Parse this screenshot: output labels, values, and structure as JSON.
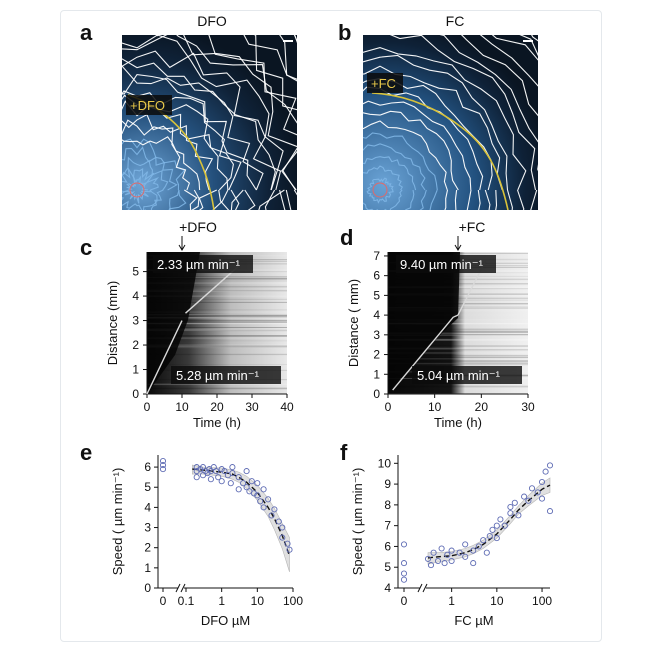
{
  "panels": {
    "a": {
      "label": "a",
      "title": "DFO",
      "inset_label": "+DFO"
    },
    "b": {
      "label": "b",
      "title": "FC",
      "inset_label": "+FC"
    },
    "c": {
      "label": "c"
    },
    "d": {
      "label": "d"
    },
    "e": {
      "label": "e"
    },
    "f": {
      "label": "f"
    }
  },
  "colors": {
    "ink": "#111111",
    "scatter": "#5f6cb4",
    "band": "#c8c8c8",
    "image_bg": "#0d1a2a",
    "contour": "#ffffff",
    "inner_contour": "#7fb6e6",
    "boundary": "#d8c23a"
  },
  "chart_data": [
    {
      "id": "c",
      "type": "heatmap",
      "title": "",
      "xlabel": "Time (h)",
      "ylabel": "Distance (mm)",
      "xlim": [
        0,
        40
      ],
      "ylim": [
        0,
        5.8
      ],
      "xticks": [
        "0",
        "10",
        "20",
        "30",
        "40"
      ],
      "yticks": [
        "0",
        "1",
        "2",
        "3",
        "4",
        "5"
      ],
      "event_label": "+DFO",
      "event_x": 10,
      "annotations": [
        "2.33 µm min⁻¹",
        "5.28 µm min⁻¹"
      ],
      "front_segments": [
        {
          "x": [
            0,
            10
          ],
          "y": [
            0,
            3.0
          ]
        },
        {
          "x": [
            11,
            26
          ],
          "y": [
            3.3,
            5.2
          ]
        }
      ]
    },
    {
      "id": "d",
      "type": "heatmap",
      "title": "",
      "xlabel": "Time (h)",
      "ylabel": "Distance ( mm)",
      "xlim": [
        0,
        30
      ],
      "ylim": [
        0,
        7.2
      ],
      "xticks": [
        "0",
        "10",
        "20",
        "30"
      ],
      "yticks": [
        "0",
        "1",
        "2",
        "3",
        "4",
        "5",
        "6",
        "7"
      ],
      "event_label": "+FC",
      "event_x": 15,
      "annotations": [
        "9.40 µm min⁻¹",
        "5.04 µm min⁻¹"
      ],
      "front_segments": [
        {
          "x": [
            1,
            14
          ],
          "y": [
            0.2,
            3.9
          ]
        },
        {
          "x": [
            14,
            15
          ],
          "y": [
            3.9,
            4.0
          ]
        },
        {
          "x": [
            15,
            21
          ],
          "y": [
            4.0,
            6.8
          ]
        }
      ]
    },
    {
      "id": "e",
      "type": "scatter",
      "title": "",
      "xlabel": "DFO µM",
      "ylabel": "Speed ( µm min⁻¹)",
      "x_scale": "log",
      "ylim": [
        0,
        6.6
      ],
      "xticks": [
        "0",
        "0.1",
        "1",
        "10",
        "100"
      ],
      "yticks": [
        "0",
        "1",
        "2",
        "3",
        "4",
        "5",
        "6"
      ],
      "points": [
        {
          "x": 0,
          "y": 6.1
        },
        {
          "x": 0,
          "y": 5.9
        },
        {
          "x": 0,
          "y": 6.3
        },
        {
          "x": 0.2,
          "y": 5.8
        },
        {
          "x": 0.2,
          "y": 6.0
        },
        {
          "x": 0.2,
          "y": 5.5
        },
        {
          "x": 0.25,
          "y": 5.9
        },
        {
          "x": 0.3,
          "y": 6.0
        },
        {
          "x": 0.3,
          "y": 5.6
        },
        {
          "x": 0.35,
          "y": 5.8
        },
        {
          "x": 0.4,
          "y": 5.7
        },
        {
          "x": 0.45,
          "y": 5.9
        },
        {
          "x": 0.5,
          "y": 5.4
        },
        {
          "x": 0.5,
          "y": 5.8
        },
        {
          "x": 0.6,
          "y": 6.0
        },
        {
          "x": 0.7,
          "y": 5.8
        },
        {
          "x": 0.8,
          "y": 5.5
        },
        {
          "x": 1,
          "y": 5.9
        },
        {
          "x": 1,
          "y": 5.3
        },
        {
          "x": 1.2,
          "y": 5.8
        },
        {
          "x": 1.5,
          "y": 5.6
        },
        {
          "x": 1.8,
          "y": 5.2
        },
        {
          "x": 2,
          "y": 5.7
        },
        {
          "x": 2,
          "y": 6.0
        },
        {
          "x": 3,
          "y": 5.5
        },
        {
          "x": 3,
          "y": 4.9
        },
        {
          "x": 4,
          "y": 5.2
        },
        {
          "x": 5,
          "y": 5.8
        },
        {
          "x": 5,
          "y": 5.0
        },
        {
          "x": 6,
          "y": 4.8
        },
        {
          "x": 7,
          "y": 5.3
        },
        {
          "x": 8,
          "y": 4.7
        },
        {
          "x": 10,
          "y": 4.6
        },
        {
          "x": 10,
          "y": 5.2
        },
        {
          "x": 12,
          "y": 4.3
        },
        {
          "x": 15,
          "y": 4.9
        },
        {
          "x": 15,
          "y": 4.0
        },
        {
          "x": 20,
          "y": 4.4
        },
        {
          "x": 25,
          "y": 3.6
        },
        {
          "x": 30,
          "y": 3.9
        },
        {
          "x": 40,
          "y": 3.3
        },
        {
          "x": 50,
          "y": 3.0
        },
        {
          "x": 50,
          "y": 2.5
        },
        {
          "x": 70,
          "y": 2.2
        },
        {
          "x": 80,
          "y": 1.9
        }
      ],
      "fit": {
        "x": [
          0.15,
          0.3,
          1,
          2,
          3,
          5,
          10,
          20,
          30,
          50,
          80
        ],
        "y": [
          5.9,
          5.85,
          5.75,
          5.65,
          5.5,
          5.25,
          4.75,
          4.0,
          3.45,
          2.6,
          1.6
        ]
      },
      "band": {
        "upper": [
          6.1,
          6.0,
          5.95,
          5.85,
          5.75,
          5.55,
          5.1,
          4.45,
          3.95,
          3.2,
          2.5
        ],
        "lower": [
          5.65,
          5.65,
          5.55,
          5.4,
          5.25,
          4.95,
          4.35,
          3.55,
          2.9,
          1.95,
          0.8
        ]
      }
    },
    {
      "id": "f",
      "type": "scatter",
      "title": "",
      "xlabel": "FC µM",
      "ylabel": "Speed ( µm min⁻¹)",
      "x_scale": "log",
      "ylim": [
        4,
        10.4
      ],
      "xticks": [
        "0",
        "1",
        "10",
        "100"
      ],
      "yticks": [
        "4",
        "5",
        "6",
        "7",
        "8",
        "9",
        "10"
      ],
      "points": [
        {
          "x": 0,
          "y": 4.7
        },
        {
          "x": 0,
          "y": 5.2
        },
        {
          "x": 0,
          "y": 6.1
        },
        {
          "x": 0,
          "y": 4.4
        },
        {
          "x": 0.3,
          "y": 5.4
        },
        {
          "x": 0.35,
          "y": 5.1
        },
        {
          "x": 0.4,
          "y": 5.7
        },
        {
          "x": 0.5,
          "y": 5.3
        },
        {
          "x": 0.6,
          "y": 5.9
        },
        {
          "x": 0.7,
          "y": 5.2
        },
        {
          "x": 0.8,
          "y": 5.6
        },
        {
          "x": 1,
          "y": 5.8
        },
        {
          "x": 1,
          "y": 5.3
        },
        {
          "x": 1.5,
          "y": 5.7
        },
        {
          "x": 2,
          "y": 5.5
        },
        {
          "x": 2,
          "y": 6.1
        },
        {
          "x": 3,
          "y": 5.8
        },
        {
          "x": 3,
          "y": 5.2
        },
        {
          "x": 4,
          "y": 6.0
        },
        {
          "x": 5,
          "y": 6.3
        },
        {
          "x": 6,
          "y": 5.7
        },
        {
          "x": 7,
          "y": 6.5
        },
        {
          "x": 8,
          "y": 6.8
        },
        {
          "x": 10,
          "y": 6.4
        },
        {
          "x": 10,
          "y": 7.0
        },
        {
          "x": 12,
          "y": 7.3
        },
        {
          "x": 15,
          "y": 7.0
        },
        {
          "x": 20,
          "y": 7.6
        },
        {
          "x": 20,
          "y": 7.9
        },
        {
          "x": 25,
          "y": 8.1
        },
        {
          "x": 30,
          "y": 7.5
        },
        {
          "x": 40,
          "y": 8.4
        },
        {
          "x": 50,
          "y": 8.2
        },
        {
          "x": 60,
          "y": 8.8
        },
        {
          "x": 80,
          "y": 8.6
        },
        {
          "x": 100,
          "y": 9.1
        },
        {
          "x": 100,
          "y": 8.3
        },
        {
          "x": 120,
          "y": 9.6
        },
        {
          "x": 150,
          "y": 9.9
        },
        {
          "x": 150,
          "y": 7.7
        }
      ],
      "fit": {
        "x": [
          0.3,
          0.5,
          1,
          2,
          3,
          5,
          10,
          20,
          30,
          50,
          100,
          150
        ],
        "y": [
          5.45,
          5.5,
          5.55,
          5.7,
          5.85,
          6.1,
          6.6,
          7.3,
          7.75,
          8.2,
          8.75,
          8.95
        ]
      },
      "band": {
        "upper": [
          5.7,
          5.7,
          5.75,
          5.9,
          6.05,
          6.3,
          6.8,
          7.5,
          7.95,
          8.45,
          9.05,
          9.3
        ],
        "lower": [
          5.15,
          5.25,
          5.35,
          5.5,
          5.65,
          5.9,
          6.4,
          7.1,
          7.55,
          7.95,
          8.45,
          8.6
        ]
      }
    }
  ]
}
